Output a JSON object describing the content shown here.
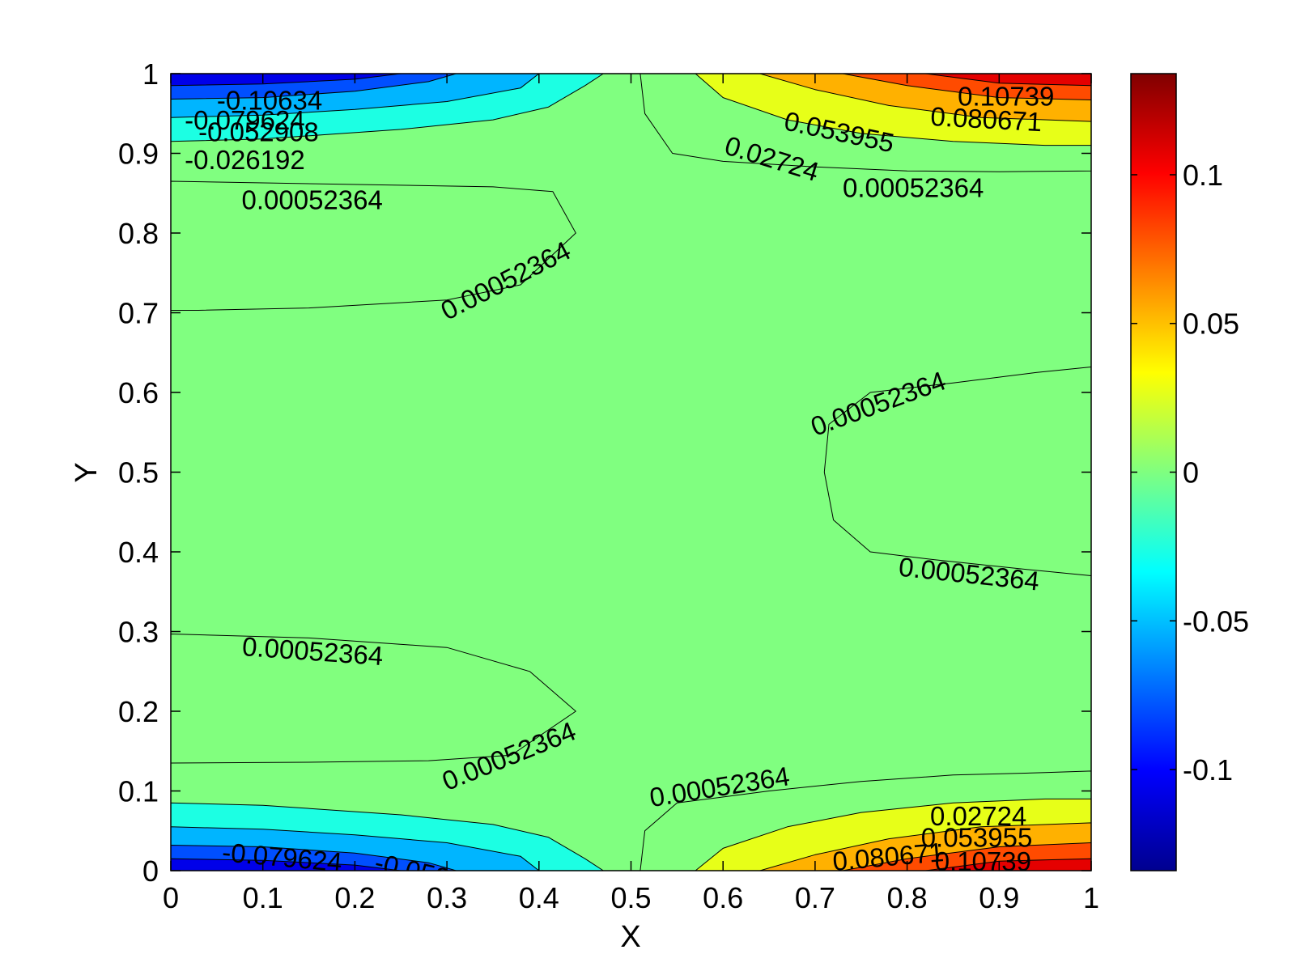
{
  "chart_data": {
    "type": "contour",
    "xlabel": "X",
    "ylabel": "Y",
    "xlim": [
      0,
      1
    ],
    "ylim": [
      0,
      1
    ],
    "x_ticks": [
      "0",
      "0.1",
      "0.2",
      "0.3",
      "0.4",
      "0.5",
      "0.6",
      "0.7",
      "0.8",
      "0.9",
      "1"
    ],
    "y_ticks": [
      "0",
      "0.1",
      "0.2",
      "0.3",
      "0.4",
      "0.5",
      "0.6",
      "0.7",
      "0.8",
      "0.9",
      "1"
    ],
    "colormap": "jet",
    "colorbar": {
      "range": [
        -0.134,
        0.134
      ],
      "ticks": [
        {
          "value": 0.1,
          "label": "0.1"
        },
        {
          "value": 0.05,
          "label": "0.05"
        },
        {
          "value": 0,
          "label": "0"
        },
        {
          "value": -0.05,
          "label": "-0.05"
        },
        {
          "value": -0.1,
          "label": "-0.1"
        }
      ]
    },
    "contour_levels": [
      -0.10634,
      -0.079624,
      -0.052908,
      -0.026192,
      0.00052364,
      0.02724,
      0.053955,
      0.080671,
      0.10739
    ],
    "contour_labels": [
      {
        "text": "-0.10634",
        "x": 0.05,
        "y": 0.955,
        "angle": 0
      },
      {
        "text": "-0.079624",
        "x": 0.015,
        "y": 0.93,
        "angle": 0
      },
      {
        "text": "-0.052908",
        "x": 0.03,
        "y": 0.915,
        "angle": 0
      },
      {
        "text": "-0.026192",
        "x": 0.015,
        "y": 0.88,
        "angle": 0
      },
      {
        "text": "0.00052364",
        "x": 0.077,
        "y": 0.83,
        "angle": 0
      },
      {
        "text": "0.00052364",
        "x": 0.3,
        "y": 0.69,
        "angle": -27
      },
      {
        "text": "0.053955",
        "x": 0.665,
        "y": 0.93,
        "angle": 12
      },
      {
        "text": "0.02724",
        "x": 0.6,
        "y": 0.9,
        "angle": 17
      },
      {
        "text": "0.10739",
        "x": 0.855,
        "y": 0.96,
        "angle": 0
      },
      {
        "text": "0.080671",
        "x": 0.825,
        "y": 0.935,
        "angle": 3
      },
      {
        "text": "0.00052364",
        "x": 0.73,
        "y": 0.845,
        "angle": 0
      },
      {
        "text": "0.00052364",
        "x": 0.7,
        "y": 0.545,
        "angle": -20
      },
      {
        "text": "0.00052364",
        "x": 0.79,
        "y": 0.37,
        "angle": 6
      },
      {
        "text": "0.00052364",
        "x": 0.077,
        "y": 0.27,
        "angle": 4
      },
      {
        "text": "0.00052364",
        "x": 0.3,
        "y": 0.1,
        "angle": -22
      },
      {
        "text": "0.00052364",
        "x": 0.522,
        "y": 0.08,
        "angle": -9
      },
      {
        "text": "0.02724",
        "x": 0.825,
        "y": 0.057,
        "angle": 0
      },
      {
        "text": "0.053955",
        "x": 0.815,
        "y": 0.03,
        "angle": 0
      },
      {
        "text": "0.080671",
        "x": 0.72,
        "y": 0.0,
        "angle": -5
      },
      {
        "text": "0.10739",
        "x": 0.83,
        "y": 0.0,
        "angle": 0
      },
      {
        "text": "-0.079624",
        "x": 0.055,
        "y": 0.012,
        "angle": 5
      },
      {
        "text": "-0.052908",
        "x": 0.22,
        "y": 0.0,
        "angle": 13
      }
    ],
    "regions": [
      {
        "level": 0.0,
        "points": [
          [
            0,
            0
          ],
          [
            1,
            0
          ],
          [
            1,
            1
          ],
          [
            0,
            1
          ]
        ]
      },
      {
        "level": 0.00052364,
        "points": [
          [
            0,
            0.865
          ],
          [
            0.35,
            0.858
          ],
          [
            0.415,
            0.852
          ],
          [
            0.44,
            0.8
          ],
          [
            0.38,
            0.735
          ],
          [
            0.3,
            0.716
          ],
          [
            0.15,
            0.706
          ],
          [
            0.03,
            0.703
          ],
          [
            0,
            0.703
          ]
        ]
      },
      {
        "level": 0.00052364,
        "points": [
          [
            0,
            0.297
          ],
          [
            0.15,
            0.292
          ],
          [
            0.3,
            0.28
          ],
          [
            0.39,
            0.25
          ],
          [
            0.44,
            0.2
          ],
          [
            0.37,
            0.145
          ],
          [
            0.28,
            0.138
          ],
          [
            0.15,
            0.136
          ],
          [
            0,
            0.135
          ]
        ]
      },
      {
        "level": 0.00052364,
        "points": [
          [
            1,
            0.632
          ],
          [
            0.94,
            0.625
          ],
          [
            0.85,
            0.612
          ],
          [
            0.76,
            0.6
          ],
          [
            0.715,
            0.56
          ],
          [
            0.71,
            0.5
          ],
          [
            0.72,
            0.44
          ],
          [
            0.76,
            0.4
          ],
          [
            0.83,
            0.39
          ],
          [
            0.93,
            0.378
          ],
          [
            1,
            0.37
          ]
        ]
      },
      {
        "level": 0.00052364,
        "points": [
          [
            0.51,
            1
          ],
          [
            0.515,
            0.95
          ],
          [
            0.545,
            0.9
          ],
          [
            0.6,
            0.89
          ],
          [
            0.7,
            0.883
          ],
          [
            0.8,
            0.878
          ],
          [
            0.9,
            0.877
          ],
          [
            1,
            0.878
          ],
          [
            1,
            1
          ]
        ]
      },
      {
        "level": 0.00052364,
        "points": [
          [
            0.51,
            0
          ],
          [
            0.515,
            0.05
          ],
          [
            0.55,
            0.085
          ],
          [
            0.65,
            0.1
          ],
          [
            0.75,
            0.112
          ],
          [
            0.85,
            0.12
          ],
          [
            0.95,
            0.123
          ],
          [
            1,
            0.125
          ],
          [
            1,
            0
          ]
        ]
      },
      {
        "level": 0.02724,
        "points": [
          [
            0.57,
            1
          ],
          [
            0.6,
            0.97
          ],
          [
            0.67,
            0.942
          ],
          [
            0.75,
            0.925
          ],
          [
            0.85,
            0.915
          ],
          [
            0.95,
            0.91
          ],
          [
            1,
            0.91
          ],
          [
            1,
            1
          ]
        ]
      },
      {
        "level": 0.02724,
        "points": [
          [
            0.57,
            0
          ],
          [
            0.6,
            0.028
          ],
          [
            0.67,
            0.055
          ],
          [
            0.75,
            0.073
          ],
          [
            0.85,
            0.085
          ],
          [
            0.95,
            0.09
          ],
          [
            1,
            0.09
          ],
          [
            1,
            0
          ]
        ]
      },
      {
        "level": 0.053955,
        "points": [
          [
            0.64,
            1
          ],
          [
            0.7,
            0.98
          ],
          [
            0.78,
            0.96
          ],
          [
            0.88,
            0.945
          ],
          [
            1,
            0.94
          ],
          [
            1,
            1
          ]
        ]
      },
      {
        "level": 0.053955,
        "points": [
          [
            0.64,
            0
          ],
          [
            0.7,
            0.02
          ],
          [
            0.78,
            0.04
          ],
          [
            0.88,
            0.055
          ],
          [
            1,
            0.06
          ],
          [
            1,
            0
          ]
        ]
      },
      {
        "level": 0.080671,
        "points": [
          [
            0.73,
            1
          ],
          [
            0.8,
            0.985
          ],
          [
            0.9,
            0.97
          ],
          [
            1,
            0.967
          ],
          [
            1,
            1
          ]
        ]
      },
      {
        "level": 0.080671,
        "points": [
          [
            0.73,
            0
          ],
          [
            0.8,
            0.015
          ],
          [
            0.9,
            0.03
          ],
          [
            1,
            0.035
          ],
          [
            1,
            0
          ]
        ]
      },
      {
        "level": 0.10739,
        "points": [
          [
            0.82,
            1
          ],
          [
            0.9,
            0.988
          ],
          [
            1,
            0.985
          ],
          [
            1,
            1
          ]
        ]
      },
      {
        "level": 0.10739,
        "points": [
          [
            0.82,
            0
          ],
          [
            0.9,
            0.012
          ],
          [
            1,
            0.015
          ],
          [
            1,
            0
          ]
        ]
      },
      {
        "level": -0.026192,
        "points": [
          [
            0,
            1
          ],
          [
            0,
            0.915
          ],
          [
            0.1,
            0.918
          ],
          [
            0.25,
            0.93
          ],
          [
            0.35,
            0.942
          ],
          [
            0.41,
            0.958
          ],
          [
            0.45,
            0.985
          ],
          [
            0.47,
            1
          ]
        ]
      },
      {
        "level": -0.026192,
        "points": [
          [
            0,
            0
          ],
          [
            0,
            0.085
          ],
          [
            0.1,
            0.082
          ],
          [
            0.25,
            0.07
          ],
          [
            0.35,
            0.058
          ],
          [
            0.41,
            0.042
          ],
          [
            0.45,
            0.015
          ],
          [
            0.47,
            0
          ]
        ]
      },
      {
        "level": -0.052908,
        "points": [
          [
            0,
            1
          ],
          [
            0,
            0.945
          ],
          [
            0.1,
            0.948
          ],
          [
            0.2,
            0.955
          ],
          [
            0.3,
            0.965
          ],
          [
            0.38,
            0.982
          ],
          [
            0.4,
            1
          ]
        ]
      },
      {
        "level": -0.052908,
        "points": [
          [
            0,
            0
          ],
          [
            0,
            0.055
          ],
          [
            0.1,
            0.052
          ],
          [
            0.2,
            0.045
          ],
          [
            0.3,
            0.035
          ],
          [
            0.38,
            0.018
          ],
          [
            0.4,
            0
          ]
        ]
      },
      {
        "level": -0.079624,
        "points": [
          [
            0,
            1
          ],
          [
            0,
            0.968
          ],
          [
            0.1,
            0.97
          ],
          [
            0.2,
            0.978
          ],
          [
            0.28,
            0.99
          ],
          [
            0.31,
            1
          ]
        ]
      },
      {
        "level": -0.079624,
        "points": [
          [
            0,
            0
          ],
          [
            0,
            0.032
          ],
          [
            0.1,
            0.03
          ],
          [
            0.2,
            0.022
          ],
          [
            0.28,
            0.01
          ],
          [
            0.31,
            0
          ]
        ]
      },
      {
        "level": -0.10634,
        "points": [
          [
            0,
            1
          ],
          [
            0,
            0.985
          ],
          [
            0.1,
            0.987
          ],
          [
            0.2,
            0.993
          ],
          [
            0.25,
            1
          ]
        ]
      },
      {
        "level": -0.10634,
        "points": [
          [
            0,
            0
          ],
          [
            0,
            0.015
          ],
          [
            0.1,
            0.013
          ],
          [
            0.2,
            0.007
          ],
          [
            0.25,
            0
          ]
        ]
      }
    ]
  }
}
